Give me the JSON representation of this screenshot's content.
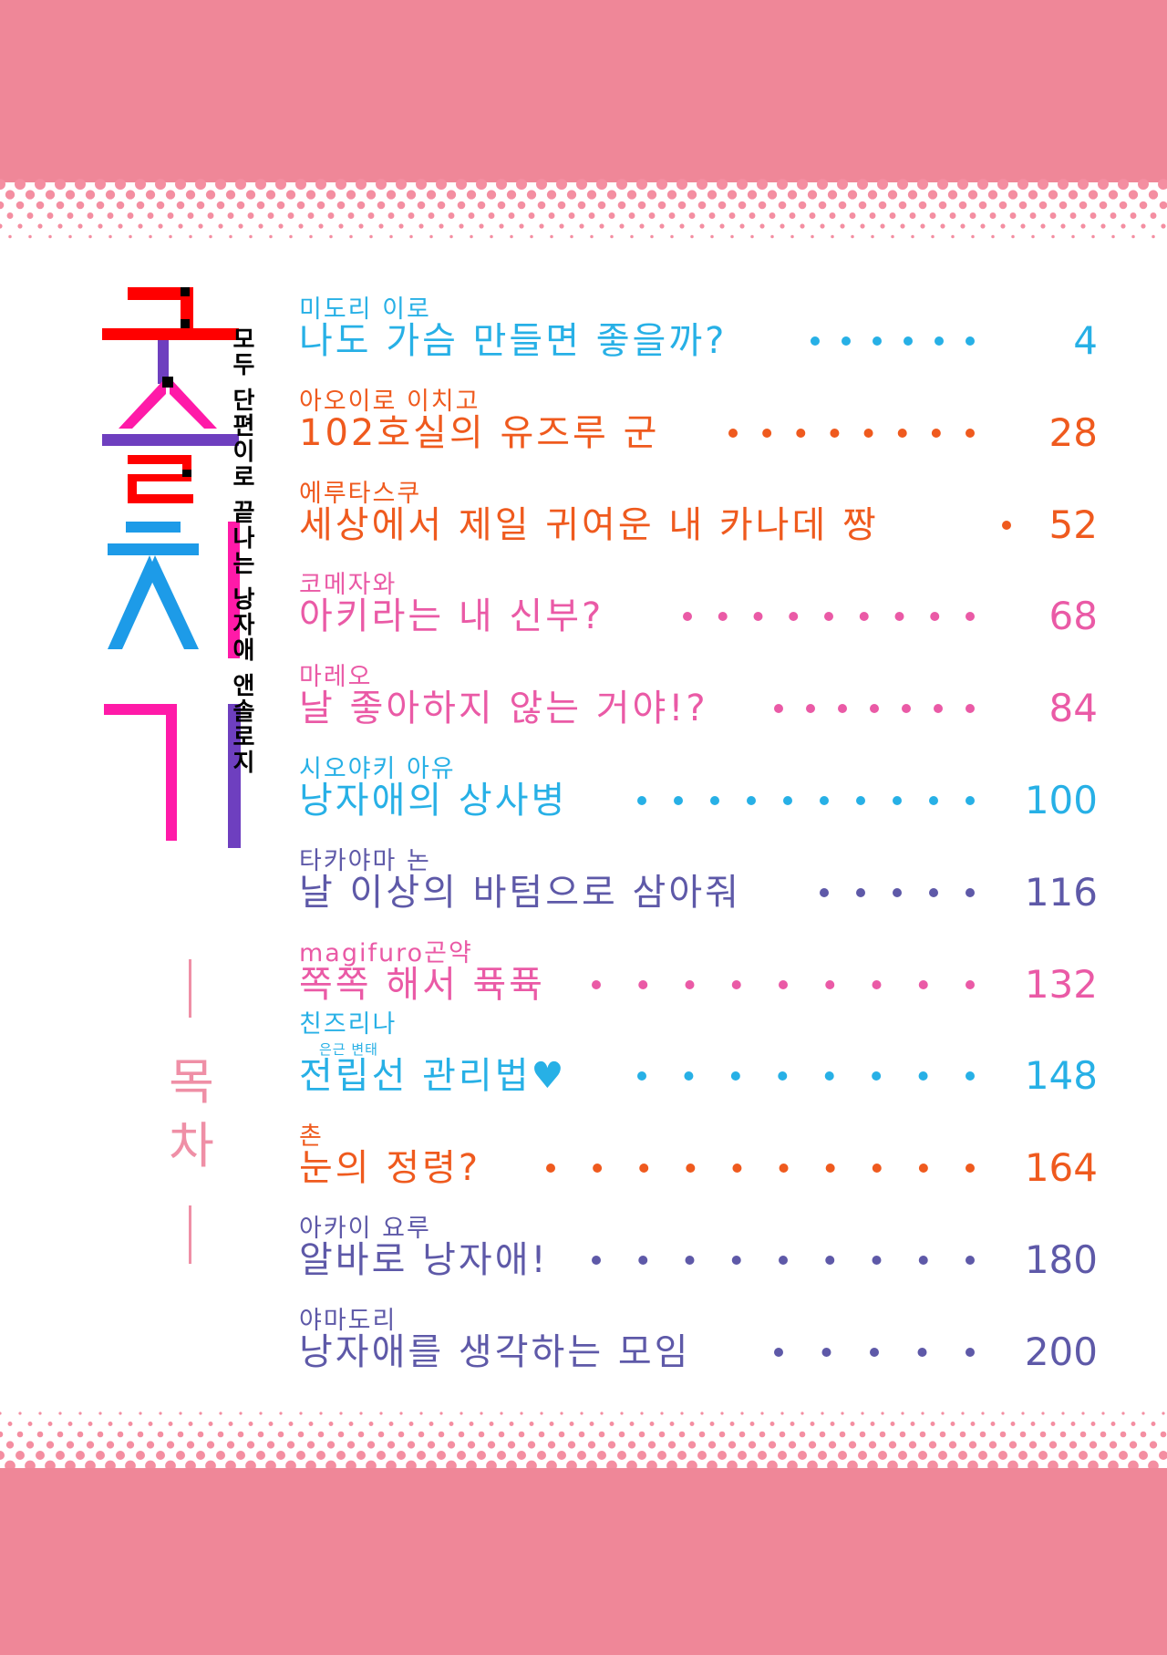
{
  "colors": {
    "band": "#ef8798",
    "dot": "#f48ea1",
    "cyan": "#27b0e6",
    "orange": "#ef5a1e",
    "pink": "#ea5aa6",
    "indigo": "#5e59a8",
    "red": "#ff0000",
    "magenta": "#ff1aa8",
    "purple": "#6e3fbf",
    "skyblue": "#1d9be8",
    "label_pink": "#ef8fa6"
  },
  "title": {
    "main": "구슬치기",
    "subtitle": "모두 단편이로 끝나는 낭자애 앤솔로지"
  },
  "contents_label": "목차",
  "toc": [
    {
      "author": "미도리 이로",
      "title": "나도 가슴 만들면 좋을까?",
      "page": "4",
      "color": "#27b0e6",
      "dots_start": 560,
      "dots": 6
    },
    {
      "author": "아오이로 이치고",
      "title": "102호실의 유즈루 군",
      "page": "28",
      "color": "#ef5a1e",
      "dots_start": 470,
      "dots": 8
    },
    {
      "author": "에루타스쿠",
      "title": "세상에서 제일 귀여운 내 카나데 짱",
      "page": "52",
      "color": "#ef5a1e",
      "dots_start": 770,
      "dots": 1
    },
    {
      "author": "코메자와",
      "title": "아키라는 내 신부?",
      "page": "68",
      "color": "#ea5aa6",
      "dots_start": 420,
      "dots": 9
    },
    {
      "author": "마레오",
      "title": "날 좋아하지 않는 거야!?",
      "page": "84",
      "color": "#ea5aa6",
      "dots_start": 520,
      "dots": 7
    },
    {
      "author": "시오야키 아유",
      "title": "낭자애의 상사병",
      "page": "100",
      "color": "#27b0e6",
      "dots_start": 370,
      "dots": 10
    },
    {
      "author": "타카야마 논",
      "title": "날 이상의 바텀으로 삼아줘",
      "page": "116",
      "color": "#5e59a8",
      "dots_start": 570,
      "dots": 5
    },
    {
      "author": "magifuro곤약",
      "title": "쪽쪽 해서 퓩퓩",
      "page": "132",
      "color": "#ea5aa6",
      "dots_start": 320,
      "dots": 9
    },
    {
      "author": "친즈리나",
      "title": "전립선 관리법♥",
      "page": "148",
      "color": "#27b0e6",
      "dots_start": 370,
      "dots": 8,
      "ruby": "은근 변태"
    },
    {
      "author": "촌",
      "title": "눈의 정령?",
      "page": "164",
      "color": "#ef5a1e",
      "dots_start": 270,
      "dots": 10
    },
    {
      "author": "아카이 요루",
      "title": "알바로 낭자애!",
      "page": "180",
      "color": "#5e59a8",
      "dots_start": 320,
      "dots": 9
    },
    {
      "author": "야마도리",
      "title": "낭자애를 생각하는 모임",
      "page": "200",
      "color": "#5e59a8",
      "dots_start": 520,
      "dots": 5
    }
  ]
}
